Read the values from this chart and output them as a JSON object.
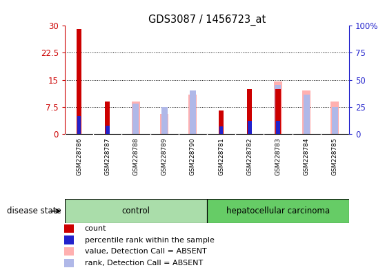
{
  "title": "GDS3087 / 1456723_at",
  "samples": [
    "GSM228786",
    "GSM228787",
    "GSM228788",
    "GSM228789",
    "GSM228790",
    "GSM228781",
    "GSM228782",
    "GSM228783",
    "GSM228784",
    "GSM228785"
  ],
  "count_values": [
    29.0,
    9.0,
    0,
    0,
    0,
    6.5,
    12.5,
    12.5,
    0,
    0
  ],
  "percentile_values": [
    16.5,
    8.0,
    0,
    0,
    0,
    7.5,
    12.5,
    12.5,
    0,
    0
  ],
  "value_absent": [
    0,
    0,
    9.0,
    5.5,
    11.0,
    0,
    0,
    14.5,
    12.0,
    9.0
  ],
  "rank_absent": [
    0,
    0,
    8.5,
    7.5,
    12.0,
    0,
    0,
    13.5,
    11.0,
    7.5
  ],
  "ylim_left": [
    0,
    30
  ],
  "ylim_right": [
    0,
    100
  ],
  "yticks_left": [
    0,
    7.5,
    15,
    22.5,
    30
  ],
  "yticks_right": [
    0,
    25,
    50,
    75,
    100
  ],
  "ytick_labels_left": [
    "0",
    "7.5",
    "15",
    "22.5",
    "30"
  ],
  "ytick_labels_right": [
    "0",
    "25",
    "50",
    "75",
    "100%"
  ],
  "control_label": "control",
  "cancer_label": "hepatocellular carcinoma",
  "disease_state_label": "disease state",
  "color_count": "#cc0000",
  "color_percentile": "#2222cc",
  "color_value_absent": "#ffb0b0",
  "color_rank_absent": "#b0b8e8",
  "color_plot_bg": "#ffffff",
  "color_label_bg": "#c8c8c8",
  "color_control_bg": "#aaddaa",
  "color_cancer_bg": "#66cc66",
  "tick_color_left": "#cc0000",
  "tick_color_right": "#2222cc",
  "legend_items": [
    "count",
    "percentile rank within the sample",
    "value, Detection Call = ABSENT",
    "rank, Detection Call = ABSENT"
  ]
}
